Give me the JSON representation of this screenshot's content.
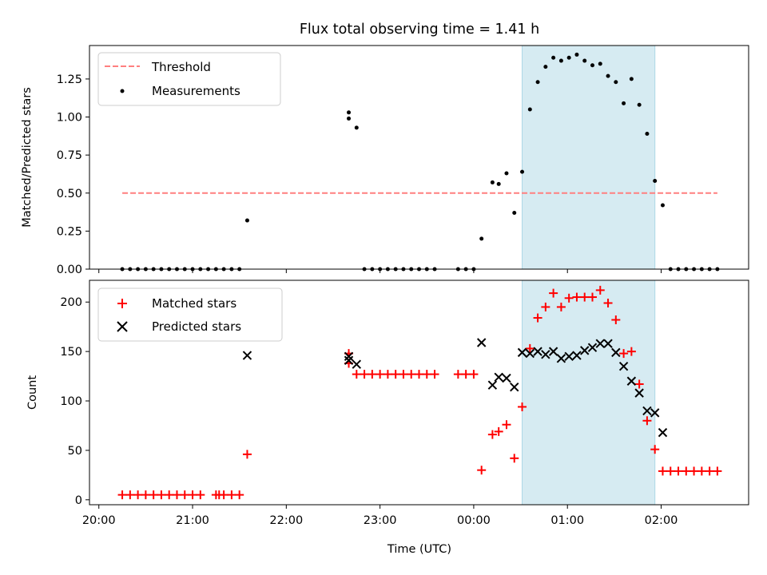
{
  "title": "Flux total observing time = 1.41 h",
  "chart_data": [
    {
      "type": "scatter",
      "ylabel": "Matched/Predicted stars",
      "ylim": [
        0,
        1.47
      ],
      "yticks": [
        "0.00",
        "0.25",
        "0.50",
        "0.75",
        "1.00",
        "1.25"
      ],
      "highlight_span": {
        "start": "00:31",
        "end": "01:56",
        "color": "#add8e6"
      },
      "threshold": {
        "name": "Threshold",
        "value": 0.5,
        "x_start": "20:15",
        "x_end": "02:36",
        "color": "#ff7f7f"
      },
      "series": [
        {
          "name": "Measurements",
          "color": "#000000",
          "points": [
            [
              "20:15",
              0
            ],
            [
              "20:20",
              0
            ],
            [
              "20:25",
              0
            ],
            [
              "20:30",
              0
            ],
            [
              "20:35",
              0
            ],
            [
              "20:40",
              0
            ],
            [
              "20:45",
              0
            ],
            [
              "20:50",
              0
            ],
            [
              "20:55",
              0
            ],
            [
              "21:00",
              0
            ],
            [
              "21:05",
              0
            ],
            [
              "21:10",
              0
            ],
            [
              "21:15",
              0
            ],
            [
              "21:20",
              0
            ],
            [
              "21:25",
              0
            ],
            [
              "21:30",
              0
            ],
            [
              "21:35",
              0.32
            ],
            [
              "22:40",
              0.99
            ],
            [
              "22:40",
              1.03
            ],
            [
              "22:45",
              0.93
            ],
            [
              "22:50",
              0
            ],
            [
              "22:55",
              0
            ],
            [
              "23:00",
              0
            ],
            [
              "23:05",
              0
            ],
            [
              "23:10",
              0
            ],
            [
              "23:15",
              0
            ],
            [
              "23:20",
              0
            ],
            [
              "23:25",
              0
            ],
            [
              "23:30",
              0
            ],
            [
              "23:35",
              0
            ],
            [
              "23:50",
              0
            ],
            [
              "23:55",
              0
            ],
            [
              "00:00",
              0
            ],
            [
              "00:05",
              0.2
            ],
            [
              "00:12",
              0.57
            ],
            [
              "00:16",
              0.56
            ],
            [
              "00:21",
              0.63
            ],
            [
              "00:26",
              0.37
            ],
            [
              "00:31",
              0.64
            ],
            [
              "00:36",
              1.05
            ],
            [
              "00:41",
              1.23
            ],
            [
              "00:46",
              1.33
            ],
            [
              "00:51",
              1.39
            ],
            [
              "00:56",
              1.37
            ],
            [
              "01:01",
              1.39
            ],
            [
              "01:06",
              1.41
            ],
            [
              "01:11",
              1.37
            ],
            [
              "01:16",
              1.34
            ],
            [
              "01:21",
              1.35
            ],
            [
              "01:26",
              1.27
            ],
            [
              "01:31",
              1.23
            ],
            [
              "01:36",
              1.09
            ],
            [
              "01:41",
              1.25
            ],
            [
              "01:46",
              1.08
            ],
            [
              "01:51",
              0.89
            ],
            [
              "01:56",
              0.58
            ],
            [
              "02:01",
              0.42
            ],
            [
              "02:06",
              0
            ],
            [
              "02:11",
              0
            ],
            [
              "02:16",
              0
            ],
            [
              "02:21",
              0
            ],
            [
              "02:26",
              0
            ],
            [
              "02:31",
              0
            ],
            [
              "02:36",
              0
            ]
          ]
        }
      ],
      "legend": {
        "position": "top-left",
        "entries": [
          "Threshold",
          "Measurements"
        ]
      }
    },
    {
      "type": "scatter",
      "ylabel": "Count",
      "xlabel": "Time (UTC)",
      "ylim": [
        -5,
        222
      ],
      "yticks": [
        "0",
        "50",
        "100",
        "150",
        "200"
      ],
      "xticks": [
        "20:00",
        "21:00",
        "22:00",
        "23:00",
        "00:00",
        "01:00",
        "02:00"
      ],
      "highlight_span": {
        "start": "00:31",
        "end": "01:56",
        "color": "#add8e6"
      },
      "series": [
        {
          "name": "Matched stars",
          "marker": "plus",
          "color": "#ff0000",
          "points": [
            [
              "20:15",
              5
            ],
            [
              "20:20",
              5
            ],
            [
              "20:25",
              5
            ],
            [
              "20:30",
              5
            ],
            [
              "20:35",
              5
            ],
            [
              "20:40",
              5
            ],
            [
              "20:45",
              5
            ],
            [
              "20:50",
              5
            ],
            [
              "20:55",
              5
            ],
            [
              "21:00",
              5
            ],
            [
              "21:05",
              5
            ],
            [
              "21:15",
              5
            ],
            [
              "21:17",
              5
            ],
            [
              "21:20",
              5
            ],
            [
              "21:25",
              5
            ],
            [
              "21:30",
              5
            ],
            [
              "21:35",
              46
            ],
            [
              "22:40",
              138
            ],
            [
              "22:40",
              148
            ],
            [
              "22:45",
              127
            ],
            [
              "22:50",
              127
            ],
            [
              "22:55",
              127
            ],
            [
              "23:00",
              127
            ],
            [
              "23:05",
              127
            ],
            [
              "23:10",
              127
            ],
            [
              "23:15",
              127
            ],
            [
              "23:20",
              127
            ],
            [
              "23:25",
              127
            ],
            [
              "23:30",
              127
            ],
            [
              "23:35",
              127
            ],
            [
              "23:50",
              127
            ],
            [
              "23:55",
              127
            ],
            [
              "00:00",
              127
            ],
            [
              "00:05",
              30
            ],
            [
              "00:12",
              66
            ],
            [
              "00:16",
              69
            ],
            [
              "00:21",
              76
            ],
            [
              "00:26",
              42
            ],
            [
              "00:31",
              94
            ],
            [
              "00:36",
              153
            ],
            [
              "00:41",
              184
            ],
            [
              "00:46",
              195
            ],
            [
              "00:51",
              209
            ],
            [
              "00:56",
              195
            ],
            [
              "01:01",
              204
            ],
            [
              "01:06",
              205
            ],
            [
              "01:11",
              205
            ],
            [
              "01:16",
              205
            ],
            [
              "01:21",
              212
            ],
            [
              "01:26",
              199
            ],
            [
              "01:31",
              182
            ],
            [
              "01:36",
              148
            ],
            [
              "01:41",
              150
            ],
            [
              "01:46",
              117
            ],
            [
              "01:51",
              80
            ],
            [
              "01:56",
              51
            ],
            [
              "02:01",
              29
            ],
            [
              "02:06",
              29
            ],
            [
              "02:11",
              29
            ],
            [
              "02:16",
              29
            ],
            [
              "02:21",
              29
            ],
            [
              "02:26",
              29
            ],
            [
              "02:31",
              29
            ],
            [
              "02:36",
              29
            ]
          ]
        },
        {
          "name": "Predicted stars",
          "marker": "x",
          "color": "#000000",
          "points": [
            [
              "21:35",
              146
            ],
            [
              "22:40",
              141
            ],
            [
              "22:40",
              145
            ],
            [
              "22:45",
              137
            ],
            [
              "00:05",
              159
            ],
            [
              "00:12",
              116
            ],
            [
              "00:16",
              124
            ],
            [
              "00:21",
              123
            ],
            [
              "00:26",
              114
            ],
            [
              "00:31",
              149
            ],
            [
              "00:36",
              148
            ],
            [
              "00:41",
              150
            ],
            [
              "00:46",
              147
            ],
            [
              "00:51",
              150
            ],
            [
              "00:56",
              143
            ],
            [
              "01:01",
              145
            ],
            [
              "01:06",
              146
            ],
            [
              "01:11",
              151
            ],
            [
              "01:16",
              154
            ],
            [
              "01:21",
              158
            ],
            [
              "01:26",
              158
            ],
            [
              "01:31",
              149
            ],
            [
              "01:36",
              135
            ],
            [
              "01:41",
              120
            ],
            [
              "01:46",
              108
            ],
            [
              "01:51",
              90
            ],
            [
              "01:56",
              88
            ],
            [
              "02:01",
              68
            ]
          ]
        }
      ],
      "legend": {
        "position": "top-left",
        "entries": [
          "Matched stars",
          "Predicted stars"
        ]
      }
    }
  ]
}
